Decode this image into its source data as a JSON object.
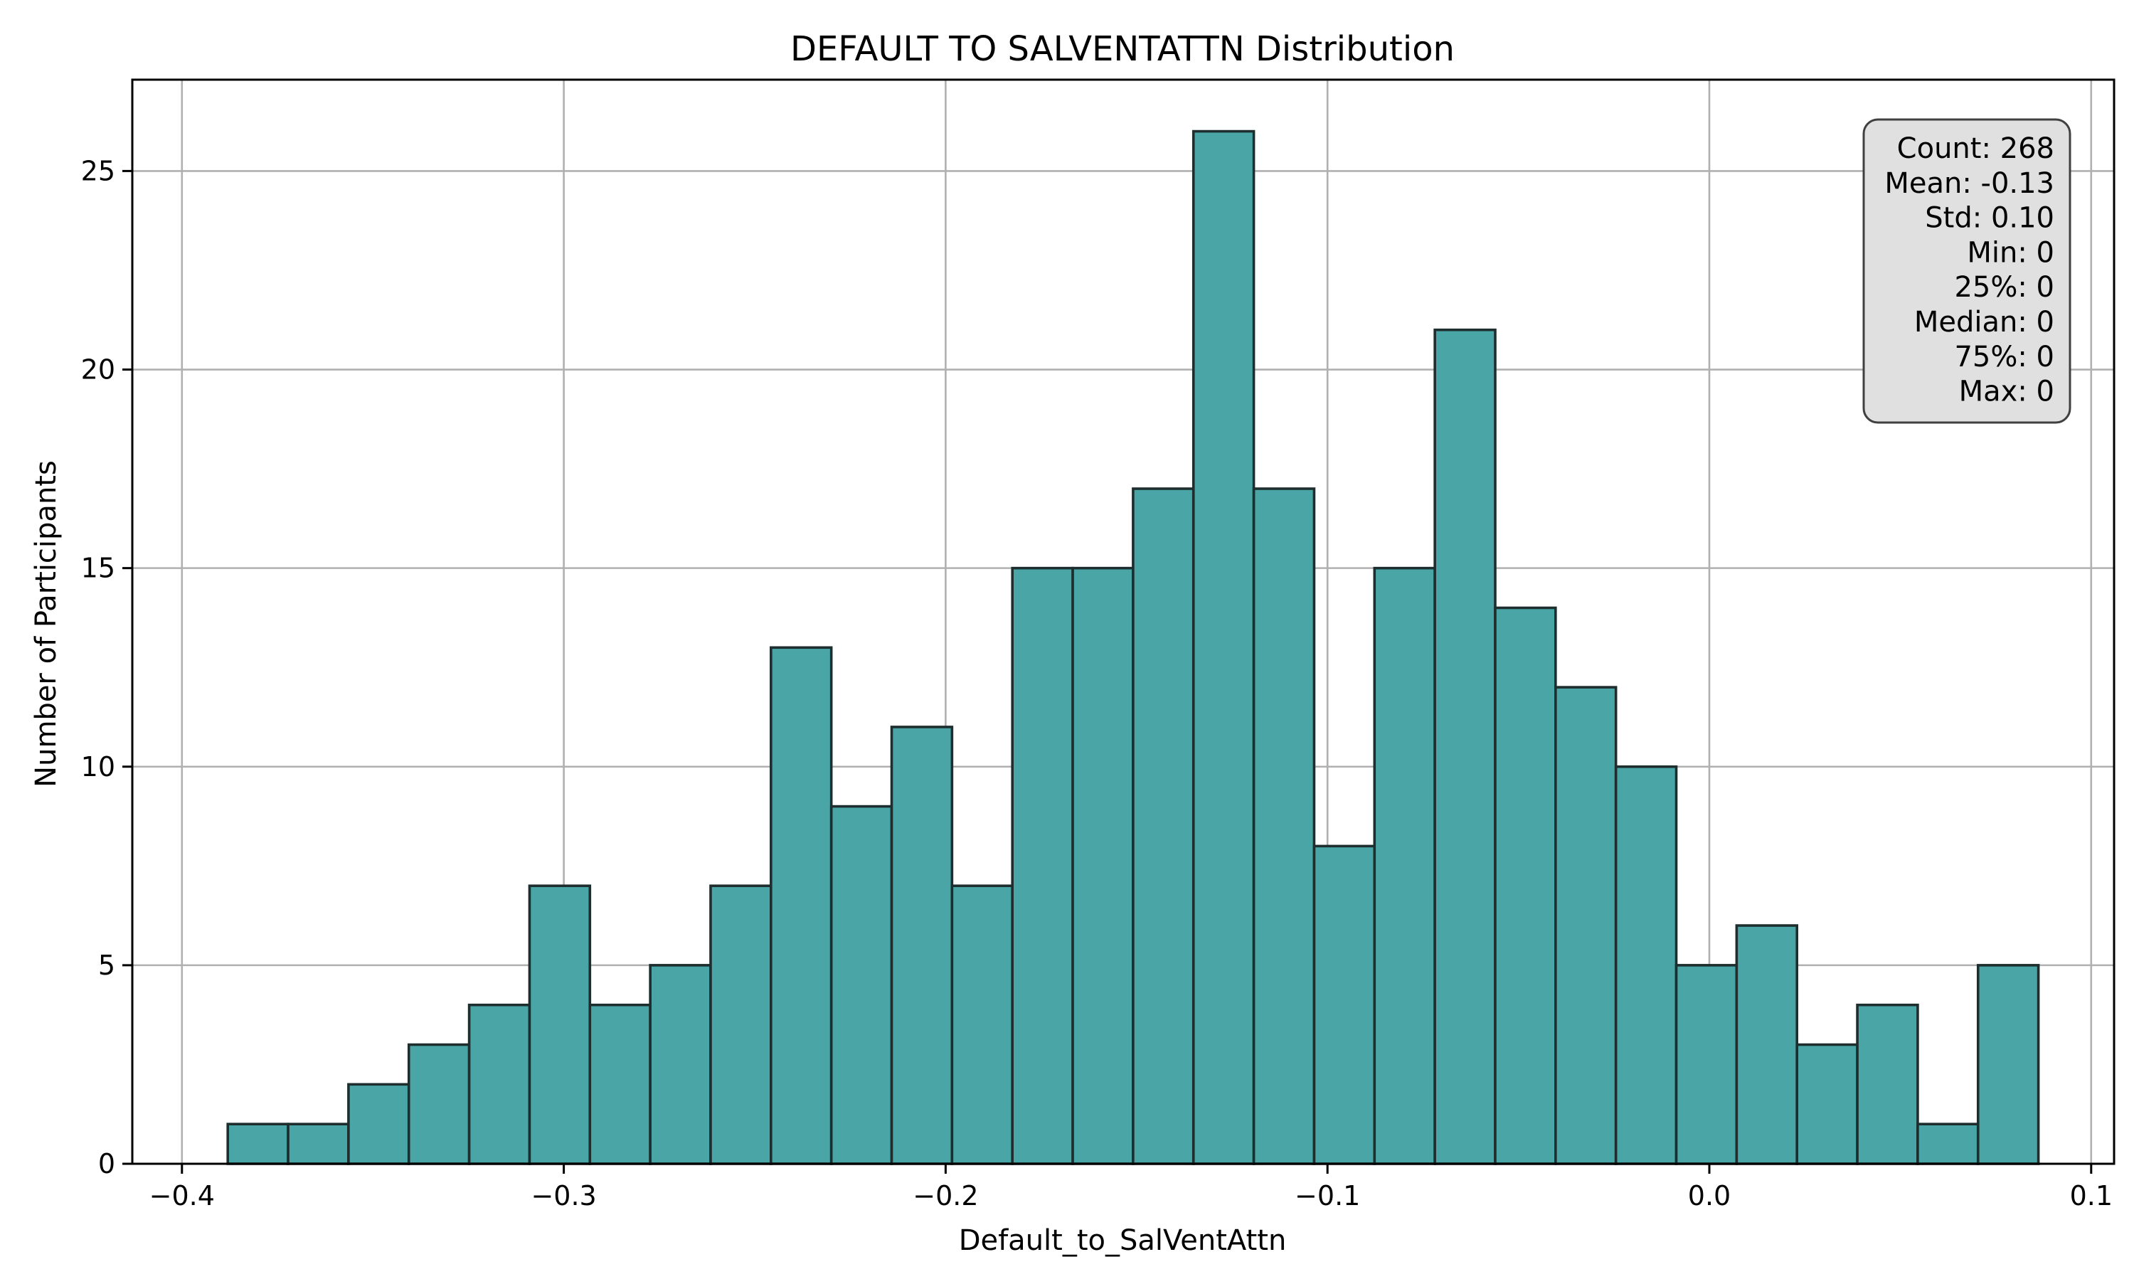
{
  "chart_data": {
    "type": "bar",
    "subtype": "histogram",
    "title": "DEFAULT TO SALVENTATTN Distribution",
    "xlabel": "Default_to_SalVentAttn",
    "ylabel": "Number of Participants",
    "xlim": [
      -0.413,
      0.106
    ],
    "ylim": [
      0,
      27.3
    ],
    "grid": true,
    "bar_color": "#4aa6a6",
    "bar_edge_color": "#1e2e2e",
    "bin_start": -0.388,
    "bin_width": 0.015806,
    "counts": [
      1,
      1,
      2,
      3,
      4,
      7,
      4,
      5,
      7,
      13,
      9,
      11,
      7,
      15,
      15,
      17,
      26,
      17,
      8,
      15,
      21,
      14,
      12,
      10,
      5,
      6,
      3,
      4,
      1,
      5
    ],
    "x_ticks": [
      {
        "value": -0.4,
        "label": "−0.4"
      },
      {
        "value": -0.3,
        "label": "−0.3"
      },
      {
        "value": -0.2,
        "label": "−0.2"
      },
      {
        "value": -0.1,
        "label": "−0.1"
      },
      {
        "value": 0.0,
        "label": "0.0"
      },
      {
        "value": 0.1,
        "label": "0.1"
      }
    ],
    "y_ticks": [
      {
        "value": 0,
        "label": "0"
      },
      {
        "value": 5,
        "label": "5"
      },
      {
        "value": 10,
        "label": "10"
      },
      {
        "value": 15,
        "label": "15"
      },
      {
        "value": 20,
        "label": "20"
      },
      {
        "value": 25,
        "label": "25"
      }
    ],
    "stats_box": {
      "placement": "top-right",
      "lines": [
        "Count: 268",
        "Mean: -0.13",
        "Std: 0.10",
        "Min: 0",
        "25%: 0",
        "Median: 0",
        "75%: 0",
        "Max: 0"
      ]
    }
  }
}
